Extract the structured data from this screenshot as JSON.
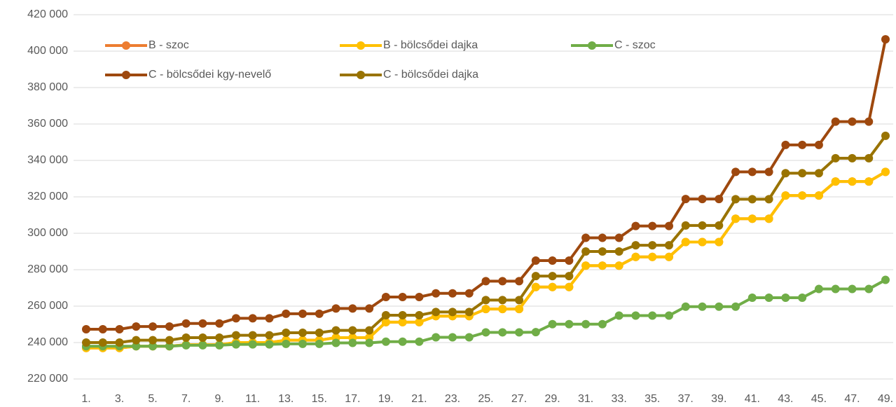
{
  "chart_data": {
    "type": "line",
    "categories": [
      "1.",
      null,
      "3.",
      null,
      "5.",
      null,
      "7.",
      null,
      "9.",
      null,
      "11.",
      null,
      "13.",
      null,
      "15.",
      null,
      "17.",
      null,
      "19.",
      null,
      "21.",
      null,
      "23.",
      null,
      "25.",
      null,
      "27.",
      null,
      "29.",
      null,
      "31.",
      null,
      "33.",
      null,
      "35.",
      null,
      "37.",
      null,
      "39.",
      null,
      "41.",
      null,
      "43.",
      null,
      "45.",
      null,
      "47.",
      null,
      "49."
    ],
    "series": [
      {
        "name": "B - szoc",
        "color": "#ED7D31",
        "values": [
          237000,
          237000,
          237000,
          238000,
          238000,
          238000,
          238800,
          238800,
          238800,
          240000,
          240000,
          240000,
          241300,
          241300,
          241300,
          242700,
          242700,
          242700,
          251200,
          251200,
          251200,
          254500,
          254500,
          254500,
          258400,
          258400,
          258400,
          270500,
          270500,
          270500,
          282200,
          282200,
          282200,
          287000,
          287000,
          287000,
          295200,
          295200,
          295200,
          308000,
          308000,
          308000,
          320700,
          320700,
          320700,
          328400,
          328400,
          328400,
          333700
        ]
      },
      {
        "name": "B - bölcsődei dajka",
        "color": "#FFC000",
        "values": [
          237000,
          237000,
          237000,
          238000,
          238000,
          238000,
          238800,
          238800,
          238800,
          240000,
          240000,
          240000,
          241300,
          241300,
          241300,
          242700,
          242700,
          242700,
          251200,
          251200,
          251200,
          254500,
          254500,
          254500,
          258400,
          258400,
          258400,
          270500,
          270500,
          270500,
          282200,
          282200,
          282200,
          287000,
          287000,
          287000,
          295200,
          295200,
          295200,
          308000,
          308000,
          308000,
          320700,
          320700,
          320700,
          328400,
          328400,
          328400,
          333700
        ]
      },
      {
        "name": "C - szoc",
        "color": "#70AD47",
        "values": [
          238000,
          238000,
          238000,
          238000,
          238000,
          238000,
          238500,
          238500,
          238500,
          239000,
          239000,
          239000,
          239300,
          239300,
          239300,
          239800,
          239800,
          239800,
          240500,
          240500,
          240500,
          242900,
          242900,
          242900,
          245600,
          245600,
          245600,
          245700,
          250100,
          250100,
          250100,
          250100,
          254800,
          254800,
          254800,
          254800,
          259700,
          259700,
          259700,
          259700,
          264600,
          264600,
          264600,
          264600,
          269400,
          269400,
          269400,
          269400,
          274400
        ]
      },
      {
        "name": "C - bölcsődei kgy-nevelő",
        "color": "#9E480E",
        "values": [
          247300,
          247300,
          247300,
          248800,
          248800,
          248800,
          250500,
          250500,
          250500,
          253300,
          253300,
          253300,
          255800,
          255800,
          255800,
          258700,
          258700,
          258700,
          265000,
          265000,
          265000,
          267000,
          267000,
          267000,
          273700,
          273700,
          273700,
          285000,
          285000,
          285000,
          297500,
          297500,
          297500,
          304000,
          304000,
          304000,
          318800,
          318800,
          318800,
          333700,
          333700,
          333700,
          348500,
          348500,
          348500,
          361300,
          361300,
          361300,
          406500
        ]
      },
      {
        "name": "C - bölcsődei dajka",
        "color": "#997300",
        "values": [
          240000,
          240000,
          240000,
          241300,
          241300,
          241300,
          242700,
          242700,
          242700,
          244000,
          244000,
          244000,
          245400,
          245400,
          245400,
          246700,
          246700,
          246700,
          255000,
          255000,
          255000,
          256800,
          256800,
          256800,
          263300,
          263300,
          263300,
          276500,
          276500,
          276500,
          290000,
          290000,
          290000,
          293400,
          293400,
          293400,
          304300,
          304300,
          304300,
          318700,
          318700,
          318700,
          333000,
          333000,
          333000,
          341200,
          341200,
          341200,
          353500
        ]
      }
    ],
    "ylim": [
      220000,
      420000
    ],
    "yticks": [
      {
        "value": 220000,
        "label": "220 000"
      },
      {
        "value": 240000,
        "label": "240 000"
      },
      {
        "value": 260000,
        "label": "260 000"
      },
      {
        "value": 280000,
        "label": "280 000"
      },
      {
        "value": 300000,
        "label": "300 000"
      },
      {
        "value": 320000,
        "label": "320 000"
      },
      {
        "value": 340000,
        "label": "340 000"
      },
      {
        "value": 360000,
        "label": "360 000"
      },
      {
        "value": 380000,
        "label": "380 000"
      },
      {
        "value": 400000,
        "label": "400 000"
      },
      {
        "value": 420000,
        "label": "420 000"
      }
    ],
    "grid": true,
    "legend": "top"
  }
}
